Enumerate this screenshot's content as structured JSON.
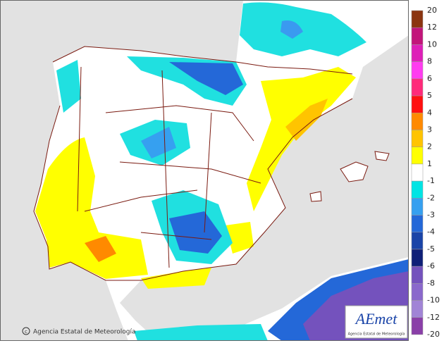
{
  "credit": "Agencia Estatal de Meteorología",
  "logo": {
    "name": "AEmet",
    "subtitle": "Agencia Estatal de Meteorología"
  },
  "legend": {
    "labels": [
      20,
      12,
      10,
      8,
      6,
      5,
      4,
      3,
      2,
      1,
      -1,
      -2,
      -3,
      -4,
      -5,
      -6,
      -8,
      -10,
      -12,
      -20
    ],
    "colors": [
      "#8b3510",
      "#c2157a",
      "#de1fb8",
      "#ff3cf0",
      "#ff2a7a",
      "#ff1010",
      "#ff8a00",
      "#ffc400",
      "#ffff00",
      "#ffffff",
      "#00e4e4",
      "#36a0f0",
      "#2468d8",
      "#1a44a8",
      "#0f1f78",
      "#7452bd",
      "#8a68cc",
      "#a184d6",
      "#8a3fa8"
    ]
  }
}
